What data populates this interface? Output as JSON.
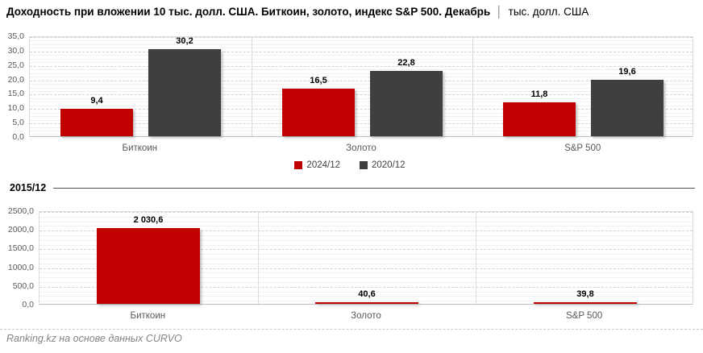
{
  "header": {
    "title": "Доходность при вложении 10 тыс. долл. США. Биткоин, золото, индекс S&P 500. Декабрь",
    "separator": "│",
    "unit": "тыс. долл. США"
  },
  "colors": {
    "series_red": "#c00000",
    "series_dark": "#3f3f3f",
    "axis_text": "#595959",
    "footer_text": "#848484"
  },
  "chart_data": [
    {
      "type": "bar",
      "title": "",
      "categories": [
        "Биткоин",
        "Золото",
        "S&P 500"
      ],
      "series": [
        {
          "name": "2024/12",
          "color": "#c00000",
          "values": [
            9.4,
            16.5,
            11.8
          ],
          "labels": [
            "9,4",
            "16,5",
            "11,8"
          ]
        },
        {
          "name": "2020/12",
          "color": "#3f3f3f",
          "values": [
            30.2,
            22.8,
            19.6
          ],
          "labels": [
            "30,2",
            "22,8",
            "19,6"
          ]
        }
      ],
      "ylim": [
        0,
        35
      ],
      "ytick_step": 5,
      "ytick_labels": [
        "0,0",
        "5,0",
        "10,0",
        "15,0",
        "20,0",
        "25,0",
        "30,0",
        "35,0"
      ],
      "grid": true,
      "legend_position": "bottom"
    },
    {
      "type": "bar",
      "title": "2015/12",
      "categories": [
        "Биткоин",
        "Золото",
        "S&P 500"
      ],
      "series": [
        {
          "name": "2015/12",
          "color": "#c00000",
          "values": [
            2030.6,
            40.6,
            39.8
          ],
          "labels": [
            "2 030,6",
            "40,6",
            "39,8"
          ]
        }
      ],
      "ylim": [
        0,
        2500
      ],
      "ytick_step": 500,
      "ytick_labels": [
        "0,0",
        "500,0",
        "1000,0",
        "1500,0",
        "2000,0",
        "2500,0"
      ],
      "grid": true,
      "legend_position": "none"
    }
  ],
  "section_label": "2015/12",
  "footer": {
    "credit": "Ranking.kz на основе данных CURVO"
  }
}
